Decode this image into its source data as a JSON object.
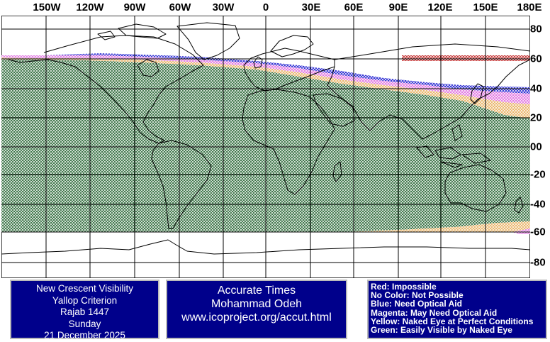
{
  "map": {
    "top_labels": [
      "150W",
      "120W",
      "90W",
      "60W",
      "30W",
      "0",
      "30E",
      "60E",
      "90E",
      "120E",
      "150E",
      "180E"
    ],
    "right_labels": [
      "80",
      "60",
      "40",
      "20",
      "00",
      "-20",
      "-40",
      "-60",
      "-80"
    ],
    "colors": {
      "green": "#2e6b3a",
      "yellow": "#f0c070",
      "magenta": "#e070e0",
      "blue": "#2020d0",
      "red": "#c02020",
      "grid": "#000000",
      "coast": "#000000"
    }
  },
  "info": {
    "lines": [
      "New Crescent Visibility",
      "Yallop Criterion",
      "Rajab 1447",
      "Sunday",
      "21 December 2025"
    ]
  },
  "source": {
    "lines": [
      "Accurate Times",
      "Mohammad Odeh",
      "www.icoproject.org/accut.html"
    ]
  },
  "legend": {
    "lines": [
      "Red: Impossible",
      "No Color: Not Possible",
      "Blue: Need Optical Aid",
      "Magenta: May Need Optical Aid",
      "Yellow: Naked Eye at Perfect Conditions",
      "Green: Easily Visible by Naked Eye"
    ]
  }
}
